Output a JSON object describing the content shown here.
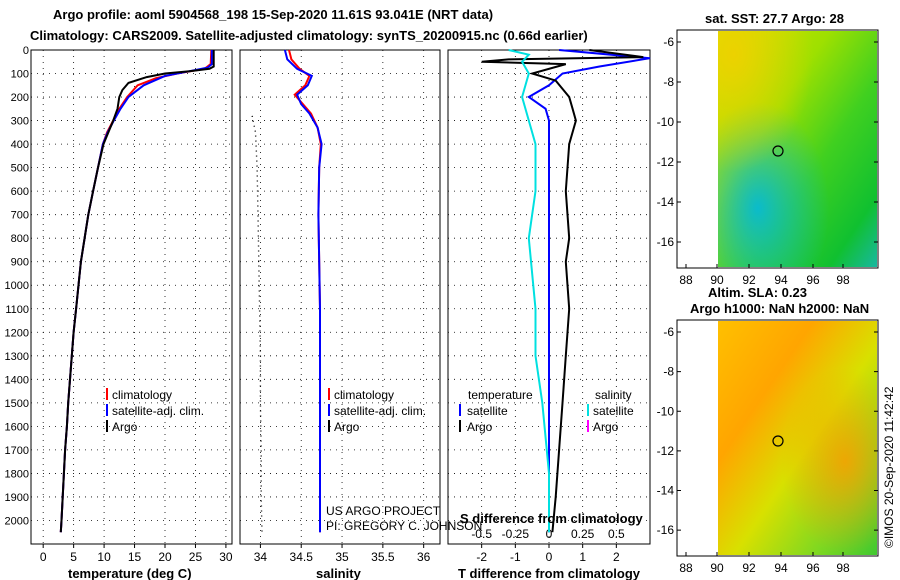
{
  "header": {
    "line1": "Argo profile: aoml 5904568_198 15-Sep-2020 11.61S 93.041E (NRT data)",
    "line2": "Climatology: CARS2009. Satellite-adjusted climatology: synTS_20200915.nc (0.66d earlier)"
  },
  "colors": {
    "climatology": "#ff0000",
    "satellite": "#0000ff",
    "argo": "#000000",
    "sal_satellite": "#00e0e0",
    "sal_argo": "#ff00ff"
  },
  "depth_axis": {
    "ticks": [
      "0",
      "100",
      "200",
      "300",
      "400",
      "500",
      "600",
      "700",
      "800",
      "900",
      "1000",
      "1100",
      "1200",
      "1300",
      "1400",
      "1500",
      "1600",
      "1700",
      "1800",
      "1900",
      "2000"
    ]
  },
  "legend": {
    "climatology": "climatology",
    "satellite_adj": "satellite-adj. clim.",
    "argo": "Argo",
    "temperature": "temperature",
    "salinity": "salinity",
    "satellite": "satellite"
  },
  "credits": {
    "project": "US ARGO PROJECT",
    "pi": "PI: GREGORY C. JOHNSON"
  },
  "maps": {
    "top_title": "sat. SST: 27.7 Argo: 28",
    "middle_title": "Altim. SLA: 0.23",
    "bottom_title": "Argo h1000: NaN h2000: NaN",
    "lon_ticks": [
      "88",
      "90",
      "92",
      "94",
      "96",
      "98"
    ],
    "lat_ticks": [
      "-6",
      "-8",
      "-10",
      "-12",
      "-14",
      "-16"
    ],
    "stamp": "©IMOS 20-Sep-2020 11:42:42"
  },
  "chart_data": [
    {
      "type": "line",
      "title": "",
      "xlabel": "temperature (deg C)",
      "ylabel": "",
      "xlim": [
        -2,
        31
      ],
      "ylim": [
        2100,
        0
      ],
      "xticks": [
        "0",
        "5",
        "10",
        "15",
        "20",
        "25",
        "30"
      ],
      "series": [
        {
          "name": "climatology",
          "color": "red",
          "points": [
            [
              27.6,
              0
            ],
            [
              27.5,
              60
            ],
            [
              26.5,
              80
            ],
            [
              22,
              100
            ],
            [
              18.5,
              120
            ],
            [
              15.5,
              150
            ],
            [
              13.8,
              200
            ],
            [
              12.5,
              250
            ],
            [
              11.5,
              300
            ],
            [
              10.5,
              350
            ],
            [
              9.8,
              400
            ],
            [
              9,
              500
            ],
            [
              8.2,
              600
            ],
            [
              7.4,
              700
            ],
            [
              6.8,
              800
            ],
            [
              6.2,
              900
            ],
            [
              5.8,
              1000
            ],
            [
              5.4,
              1100
            ],
            [
              5,
              1200
            ],
            [
              4.7,
              1300
            ],
            [
              4.4,
              1400
            ],
            [
              4.1,
              1500
            ],
            [
              3.9,
              1600
            ],
            [
              3.6,
              1700
            ],
            [
              3.4,
              1800
            ],
            [
              3.2,
              1900
            ],
            [
              3,
              2000
            ],
            [
              2.9,
              2050
            ]
          ]
        },
        {
          "name": "satellite-adj. clim.",
          "color": "blue",
          "points": [
            [
              27.7,
              0
            ],
            [
              27.7,
              60
            ],
            [
              27,
              75
            ],
            [
              24,
              90
            ],
            [
              20,
              110
            ],
            [
              16.5,
              150
            ],
            [
              14,
              200
            ],
            [
              12.7,
              250
            ],
            [
              11.6,
              300
            ],
            [
              10.6,
              350
            ],
            [
              9.8,
              400
            ],
            [
              9,
              500
            ],
            [
              8.2,
              600
            ],
            [
              7.4,
              700
            ],
            [
              6.8,
              800
            ],
            [
              6.2,
              900
            ],
            [
              5.8,
              1000
            ],
            [
              5.4,
              1100
            ],
            [
              5,
              1200
            ],
            [
              4.7,
              1300
            ],
            [
              4.4,
              1400
            ],
            [
              4.1,
              1500
            ],
            [
              3.9,
              1600
            ],
            [
              3.6,
              1700
            ],
            [
              3.4,
              1800
            ],
            [
              3.2,
              1900
            ],
            [
              3,
              2000
            ],
            [
              2.9,
              2050
            ]
          ]
        },
        {
          "name": "Argo",
          "color": "black",
          "points": [
            [
              28,
              0
            ],
            [
              28,
              70
            ],
            [
              27.3,
              80
            ],
            [
              24,
              90
            ],
            [
              20,
              100
            ],
            [
              17,
              115
            ],
            [
              14,
              140
            ],
            [
              13,
              170
            ],
            [
              12.5,
              200
            ],
            [
              12.2,
              250
            ],
            [
              11.5,
              300
            ],
            [
              10.7,
              350
            ],
            [
              9.9,
              400
            ],
            [
              9,
              500
            ],
            [
              8.2,
              600
            ],
            [
              7.4,
              700
            ],
            [
              6.8,
              800
            ],
            [
              6.2,
              900
            ],
            [
              5.8,
              1000
            ],
            [
              5.4,
              1100
            ],
            [
              5,
              1200
            ],
            [
              4.7,
              1300
            ],
            [
              4.4,
              1400
            ],
            [
              4.1,
              1500
            ],
            [
              3.9,
              1600
            ],
            [
              3.6,
              1700
            ],
            [
              3.4,
              1800
            ],
            [
              3.2,
              1900
            ],
            [
              3,
              2000
            ],
            [
              2.9,
              2050
            ]
          ]
        }
      ]
    },
    {
      "type": "line",
      "title": "",
      "xlabel": "salinity",
      "ylabel": "",
      "xlim": [
        33.75,
        36.2
      ],
      "ylim": [
        2100,
        0
      ],
      "xticks": [
        "34",
        "34.5",
        "35",
        "35.5",
        "36"
      ],
      "series": [
        {
          "name": "climatology",
          "color": "red",
          "points": [
            [
              34.35,
              0
            ],
            [
              34.38,
              40
            ],
            [
              34.48,
              80
            ],
            [
              34.6,
              110
            ],
            [
              34.55,
              150
            ],
            [
              34.42,
              190
            ],
            [
              34.52,
              230
            ],
            [
              34.62,
              270
            ],
            [
              34.7,
              330
            ],
            [
              34.74,
              400
            ],
            [
              34.72,
              500
            ],
            [
              34.71,
              700
            ],
            [
              34.72,
              900
            ],
            [
              34.73,
              1100
            ],
            [
              34.73,
              1300
            ],
            [
              34.73,
              1500
            ],
            [
              34.73,
              1700
            ],
            [
              34.73,
              1900
            ],
            [
              34.73,
              2050
            ]
          ]
        },
        {
          "name": "satellite-adj. clim.",
          "color": "blue",
          "points": [
            [
              34.3,
              0
            ],
            [
              34.33,
              40
            ],
            [
              34.45,
              80
            ],
            [
              34.63,
              110
            ],
            [
              34.58,
              150
            ],
            [
              34.45,
              190
            ],
            [
              34.5,
              230
            ],
            [
              34.6,
              270
            ],
            [
              34.7,
              330
            ],
            [
              34.75,
              400
            ],
            [
              34.72,
              500
            ],
            [
              34.71,
              700
            ],
            [
              34.72,
              900
            ],
            [
              34.73,
              1100
            ],
            [
              34.73,
              1300
            ],
            [
              34.73,
              1500
            ],
            [
              34.73,
              1700
            ],
            [
              34.73,
              1900
            ],
            [
              34.73,
              2050
            ]
          ]
        },
        {
          "name": "Argo",
          "color": "black",
          "dotted": true,
          "points": [
            [
              33.9,
              280
            ],
            [
              33.94,
              350
            ],
            [
              33.96,
              500
            ],
            [
              33.97,
              700
            ],
            [
              33.98,
              900
            ],
            [
              33.99,
              1100
            ],
            [
              34,
              1300
            ],
            [
              34,
              1500
            ],
            [
              34.01,
              1700
            ],
            [
              34.01,
              1900
            ],
            [
              34.02,
              2050
            ]
          ]
        }
      ]
    },
    {
      "type": "line",
      "title": "",
      "xlabel": "T difference from climatology",
      "x2label": "S difference from climatology",
      "ylabel": "",
      "xlim": [
        -3,
        3
      ],
      "ylim": [
        2100,
        0
      ],
      "xticks": [
        "-2",
        "-1",
        "0",
        "1",
        "2"
      ],
      "x2ticks": [
        "-0.5",
        "-0.25",
        "0",
        "0.25",
        "0.5"
      ],
      "series": [
        {
          "name": "temperature satellite",
          "color": "blue",
          "points": [
            [
              0.3,
              0
            ],
            [
              3,
              35
            ],
            [
              1.5,
              70
            ],
            [
              0.4,
              100
            ],
            [
              0,
              150
            ],
            [
              -0.6,
              200
            ],
            [
              -0.1,
              250
            ],
            [
              0,
              300
            ],
            [
              0,
              400
            ],
            [
              0,
              600
            ],
            [
              0,
              900
            ],
            [
              0,
              1200
            ],
            [
              0,
              1500
            ],
            [
              0,
              1800
            ],
            [
              0,
              2050
            ]
          ]
        },
        {
          "name": "temperature Argo",
          "color": "black",
          "points": [
            [
              1.2,
              0
            ],
            [
              2.8,
              30
            ],
            [
              -1.2,
              40
            ],
            [
              -2,
              50
            ],
            [
              0.5,
              60
            ],
            [
              -0.5,
              100
            ],
            [
              0.2,
              130
            ],
            [
              0.6,
              200
            ],
            [
              0.7,
              250
            ],
            [
              0.8,
              300
            ],
            [
              0.6,
              400
            ],
            [
              0.5,
              600
            ],
            [
              0.6,
              800
            ],
            [
              0.5,
              900
            ],
            [
              0.6,
              1100
            ],
            [
              0.5,
              1300
            ],
            [
              0.4,
              1500
            ],
            [
              0.3,
              1700
            ],
            [
              0.2,
              1900
            ],
            [
              0.1,
              2050
            ]
          ]
        },
        {
          "name": "salinity satellite",
          "color": "cyan",
          "points": [
            [
              -0.3,
              0
            ],
            [
              -0.15,
              20
            ],
            [
              -0.2,
              50
            ],
            [
              -0.15,
              100
            ],
            [
              -0.2,
              200
            ],
            [
              -0.1,
              400
            ],
            [
              -0.1,
              600
            ],
            [
              -0.15,
              800
            ],
            [
              -0.1,
              1100
            ],
            [
              -0.1,
              1300
            ],
            [
              -0.05,
              1500
            ],
            [
              0,
              1800
            ],
            [
              0,
              2050
            ]
          ]
        },
        {
          "name": "salinity Argo",
          "color": "magenta",
          "points": []
        }
      ]
    }
  ]
}
